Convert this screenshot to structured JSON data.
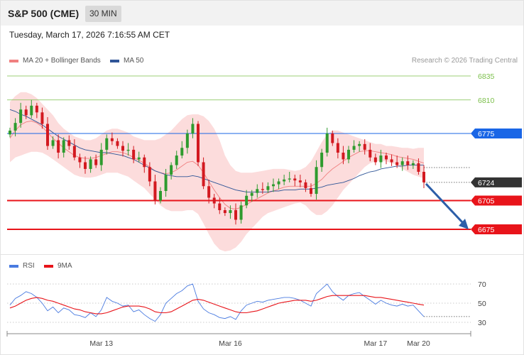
{
  "header": {
    "title": "S&P 500 (CME)",
    "timeframe": "30 MIN"
  },
  "datetime": "Tuesday, March 17, 2026 7:16:55 AM CET",
  "copyright": "Research © 2026 Trading Central",
  "legend": [
    {
      "label": "MA 20 + Bollinger Bands",
      "color": "#f08080"
    },
    {
      "label": "MA 50",
      "color": "#2f5597"
    }
  ],
  "rsi_legend": [
    {
      "label": "RSI",
      "color": "#4a7be0"
    },
    {
      "label": "9MA",
      "color": "#e8141a"
    }
  ],
  "colors": {
    "up": "#2e9b2e",
    "down": "#d31920",
    "band": "#fbd0d0",
    "ma20": "#f08080",
    "ma50": "#2f5597",
    "resistance": "#1a66e6",
    "support": "#e8141a",
    "target": "#7bbf4a",
    "arrow": "#2c5ea8",
    "last": "#333333"
  },
  "chart_data": [
    {
      "type": "candlestick",
      "y_range": [
        6655,
        6850
      ],
      "levels": [
        {
          "value": 6835,
          "label": "6835",
          "kind": "target"
        },
        {
          "value": 6810,
          "label": "6810",
          "kind": "target"
        },
        {
          "value": 6775,
          "label": "6775",
          "kind": "resistance"
        },
        {
          "value": 6724,
          "label": "6724",
          "kind": "last"
        },
        {
          "value": 6705,
          "label": "6705",
          "kind": "support"
        },
        {
          "value": 6675,
          "label": "6675",
          "kind": "support"
        }
      ],
      "price_path": [
        6778,
        6786,
        6800,
        6794,
        6804,
        6797,
        6785,
        6762,
        6768,
        6755,
        6768,
        6762,
        6750,
        6745,
        6738,
        6748,
        6742,
        6758,
        6770,
        6767,
        6762,
        6757,
        6758,
        6748,
        6750,
        6740,
        6725,
        6705,
        6715,
        6732,
        6742,
        6752,
        6760,
        6775,
        6785,
        6745,
        6720,
        6708,
        6702,
        6695,
        6692,
        6695,
        6685,
        6700,
        6710,
        6713,
        6717,
        6716,
        6720,
        6722,
        6725,
        6727,
        6728,
        6726,
        6724,
        6718,
        6712,
        6740,
        6755,
        6775,
        6765,
        6755,
        6748,
        6758,
        6762,
        6764,
        6758,
        6750,
        6745,
        6752,
        6748,
        6745,
        6742,
        6746,
        6742,
        6744,
        6735,
        6724
      ],
      "ma50": [
        6800,
        6798,
        6795,
        6793,
        6790,
        6787,
        6784,
        6780,
        6776,
        6772,
        6769,
        6766,
        6763,
        6760,
        6758,
        6757,
        6756,
        6755,
        6755,
        6754,
        6753,
        6752,
        6750,
        6748,
        6745,
        6742,
        6739,
        6736,
        6734,
        6732,
        6731,
        6730,
        6730,
        6730,
        6731,
        6730,
        6728,
        6726,
        6724,
        6722,
        6720,
        6718,
        6716,
        6715,
        6714,
        6714,
        6714,
        6714,
        6714,
        6715,
        6715,
        6716,
        6716,
        6716,
        6717,
        6717,
        6717,
        6718,
        6719,
        6721,
        6722,
        6723,
        6724,
        6726,
        6728,
        6731,
        6733,
        6735,
        6736,
        6738,
        6739,
        6740,
        6741,
        6741,
        6742,
        6742,
        6742,
        6742
      ],
      "ma20": [
        6770,
        6778,
        6784,
        6787,
        6788,
        6786,
        6782,
        6776,
        6770,
        6765,
        6760,
        6756,
        6752,
        6750,
        6749,
        6749,
        6750,
        6752,
        6754,
        6756,
        6756,
        6755,
        6753,
        6750,
        6747,
        6744,
        6740,
        6736,
        6734,
        6733,
        6734,
        6737,
        6741,
        6745,
        6746,
        6742,
        6734,
        6725,
        6716,
        6708,
        6701,
        6697,
        6696,
        6698,
        6701,
        6704,
        6707,
        6710,
        6713,
        6715,
        6717,
        6719,
        6720,
        6720,
        6720,
        6720,
        6720,
        6723,
        6727,
        6733,
        6738,
        6742,
        6746,
        6750,
        6753,
        6756,
        6757,
        6757,
        6756,
        6755,
        6754,
        6753,
        6751,
        6750,
        6749,
        6748,
        6746,
        6744
      ],
      "boll_upper": [
        6808,
        6814,
        6818,
        6818,
        6816,
        6812,
        6806,
        6800,
        6794,
        6786,
        6780,
        6776,
        6772,
        6770,
        6768,
        6768,
        6770,
        6774,
        6778,
        6780,
        6780,
        6778,
        6776,
        6772,
        6770,
        6768,
        6768,
        6768,
        6770,
        6774,
        6778,
        6784,
        6790,
        6794,
        6795,
        6795,
        6793,
        6788,
        6780,
        6768,
        6752,
        6742,
        6736,
        6734,
        6734,
        6734,
        6735,
        6736,
        6737,
        6738,
        6738,
        6738,
        6737,
        6736,
        6737,
        6740,
        6746,
        6756,
        6766,
        6774,
        6778,
        6778,
        6776,
        6774,
        6772,
        6770,
        6768,
        6766,
        6764,
        6764,
        6762,
        6762,
        6761,
        6760,
        6760,
        6759,
        6760,
        6760
      ],
      "boll_lower": [
        6745,
        6750,
        6752,
        6754,
        6756,
        6756,
        6755,
        6752,
        6748,
        6744,
        6740,
        6736,
        6732,
        6730,
        6729,
        6729,
        6730,
        6732,
        6734,
        6734,
        6734,
        6732,
        6730,
        6726,
        6722,
        6718,
        6712,
        6706,
        6700,
        6696,
        6694,
        6694,
        6694,
        6695,
        6695,
        6691,
        6681,
        6670,
        6660,
        6654,
        6652,
        6653,
        6656,
        6662,
        6670,
        6676,
        6682,
        6688,
        6692,
        6694,
        6696,
        6698,
        6700,
        6702,
        6703,
        6700,
        6694,
        6690,
        6690,
        6694,
        6700,
        6708,
        6716,
        6722,
        6728,
        6734,
        6740,
        6744,
        6746,
        6746,
        6746,
        6744,
        6742,
        6738,
        6735,
        6732,
        6730,
        6728
      ],
      "forecast_to": 6675
    },
    {
      "type": "line",
      "name": "RSI",
      "y_range": [
        25,
        75
      ],
      "levels": [
        70,
        50,
        30
      ],
      "level_labels": [
        "70",
        "50",
        "30"
      ],
      "rsi": [
        48,
        55,
        58,
        62,
        60,
        56,
        50,
        42,
        46,
        40,
        45,
        43,
        38,
        37,
        35,
        40,
        36,
        43,
        56,
        52,
        50,
        47,
        48,
        41,
        43,
        38,
        34,
        31,
        38,
        50,
        55,
        60,
        63,
        68,
        70,
        52,
        44,
        40,
        38,
        35,
        34,
        36,
        33,
        42,
        48,
        50,
        52,
        51,
        53,
        54,
        55,
        56,
        56,
        55,
        53,
        50,
        47,
        60,
        65,
        70,
        62,
        57,
        53,
        58,
        60,
        61,
        57,
        53,
        49,
        53,
        50,
        48,
        47,
        49,
        47,
        48,
        42,
        36
      ],
      "ma9": [
        45,
        47,
        50,
        53,
        55,
        56,
        55,
        53,
        52,
        50,
        48,
        46,
        44,
        43,
        41,
        40,
        39,
        39,
        40,
        42,
        44,
        46,
        47,
        47,
        47,
        46,
        44,
        41,
        40,
        40,
        41,
        44,
        47,
        50,
        53,
        54,
        53,
        51,
        49,
        47,
        45,
        43,
        41,
        40,
        40,
        41,
        42,
        44,
        46,
        48,
        50,
        51,
        52,
        53,
        53,
        53,
        52,
        53,
        55,
        57,
        58,
        58,
        58,
        58,
        58,
        58,
        58,
        57,
        56,
        56,
        55,
        54,
        53,
        52,
        51,
        50,
        49,
        48
      ]
    }
  ],
  "x_axis": {
    "ticks": [
      {
        "label": "Mar 13",
        "index": 17
      },
      {
        "label": "Mar 16",
        "index": 41
      },
      {
        "label": "Mar 17",
        "index": 68
      },
      {
        "label": "Mar 20",
        "index": 76
      }
    ]
  }
}
